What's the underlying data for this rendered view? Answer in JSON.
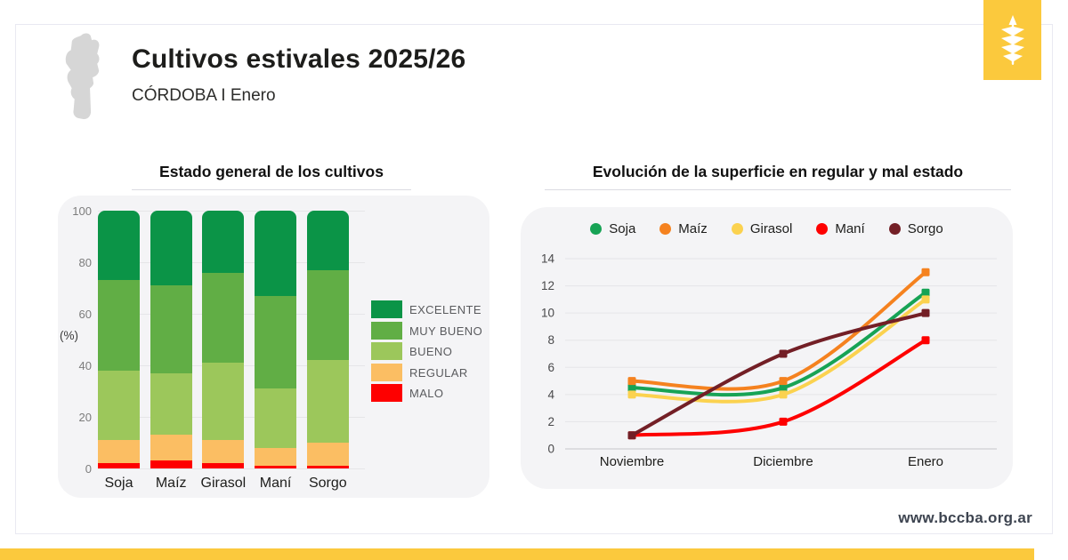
{
  "header": {
    "title": "Cultivos estivales 2025/26",
    "subtitle": "CÓRDOBA I Enero"
  },
  "footer": {
    "website": "www.bccba.org.ar"
  },
  "colors": {
    "accent_yellow": "#FBC93D",
    "card_border": "#E9E9F1",
    "panel_bg": "#F4F4F6",
    "map_gray": "#D6D6D6",
    "grid": "#E5E5E8",
    "zero_line": "#C6C6CA",
    "tick_gray": "#7C7C7C",
    "website_text": "#3D4450"
  },
  "chart_data": [
    {
      "type": "bar",
      "stacked": true,
      "title": "Estado general de los cultivos",
      "ylabel": "(%)",
      "ylim": [
        0,
        100
      ],
      "yticks": [
        0,
        20,
        40,
        60,
        80,
        100
      ],
      "grid": true,
      "categories": [
        "Soja",
        "Maíz",
        "Girasol",
        "Maní",
        "Sorgo"
      ],
      "series": [
        {
          "name": "MALO",
          "color": "#FE0000",
          "values": [
            2,
            3,
            2,
            1,
            1
          ]
        },
        {
          "name": "REGULAR",
          "color": "#FBBE63",
          "values": [
            9,
            10,
            9,
            7,
            9
          ]
        },
        {
          "name": "BUENO",
          "color": "#9CC75B",
          "values": [
            27,
            24,
            30,
            23,
            32
          ]
        },
        {
          "name": "MUY BUENO",
          "color": "#61AE45",
          "values": [
            35,
            34,
            35,
            36,
            35
          ]
        },
        {
          "name": "EXCELENTE",
          "color": "#0B9447",
          "values": [
            27,
            29,
            24,
            33,
            23
          ]
        }
      ],
      "legend_order": [
        "EXCELENTE",
        "MUY BUENO",
        "BUENO",
        "REGULAR",
        "MALO"
      ],
      "legend_position": "right"
    },
    {
      "type": "line",
      "title": "Evolución de la superficie en regular y mal estado",
      "x": [
        "Noviembre",
        "Diciembre",
        "Enero"
      ],
      "ylim": [
        0,
        14
      ],
      "yticks": [
        0,
        2,
        4,
        6,
        8,
        10,
        12,
        14
      ],
      "grid": true,
      "legend_position": "top",
      "series": [
        {
          "name": "Soja",
          "color": "#17A355",
          "values": [
            4.5,
            4.5,
            11.5
          ]
        },
        {
          "name": "Maíz",
          "color": "#F5821F",
          "values": [
            5,
            5,
            13
          ]
        },
        {
          "name": "Girasol",
          "color": "#FBD24F",
          "values": [
            4,
            4,
            11
          ]
        },
        {
          "name": "Maní",
          "color": "#FE0000",
          "values": [
            1,
            2,
            8
          ]
        },
        {
          "name": "Sorgo",
          "color": "#731F26",
          "values": [
            1,
            7,
            10
          ]
        }
      ]
    }
  ]
}
